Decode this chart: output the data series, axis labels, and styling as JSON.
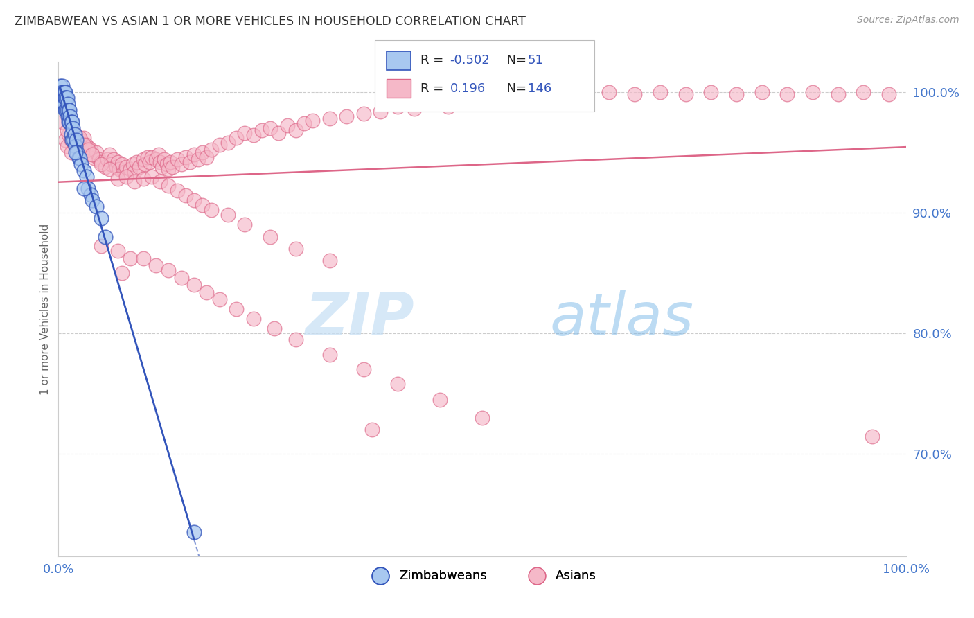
{
  "title": "ZIMBABWEAN VS ASIAN 1 OR MORE VEHICLES IN HOUSEHOLD CORRELATION CHART",
  "source_text": "Source: ZipAtlas.com",
  "ylabel": "1 or more Vehicles in Household",
  "watermark_zip": "ZIP",
  "watermark_atlas": "atlas",
  "legend_blue_r": "-0.502",
  "legend_blue_n": "51",
  "legend_pink_r": "0.196",
  "legend_pink_n": "146",
  "blue_color": "#a8c8f0",
  "pink_color": "#f5b8c8",
  "blue_line_color": "#3355bb",
  "pink_line_color": "#dd6688",
  "title_color": "#333333",
  "source_color": "#999999",
  "grid_color": "#cccccc",
  "background_color": "#ffffff",
  "tick_color": "#4477cc",
  "xlim": [
    0.0,
    1.0
  ],
  "ylim": [
    0.615,
    1.025
  ],
  "yticks": [
    0.7,
    0.8,
    0.9,
    1.0
  ],
  "ytick_labels": [
    "70.0%",
    "80.0%",
    "90.0%",
    "100.0%"
  ],
  "blue_scatter_x": [
    0.002,
    0.003,
    0.004,
    0.004,
    0.005,
    0.005,
    0.005,
    0.006,
    0.006,
    0.006,
    0.007,
    0.007,
    0.007,
    0.008,
    0.008,
    0.008,
    0.009,
    0.009,
    0.01,
    0.01,
    0.011,
    0.011,
    0.012,
    0.012,
    0.013,
    0.013,
    0.014,
    0.015,
    0.015,
    0.016,
    0.016,
    0.017,
    0.018,
    0.019,
    0.02,
    0.021,
    0.022,
    0.024,
    0.025,
    0.027,
    0.03,
    0.033,
    0.035,
    0.038,
    0.04,
    0.045,
    0.05,
    0.055,
    0.03,
    0.02,
    0.16
  ],
  "blue_scatter_y": [
    1.005,
    1.0,
    1.0,
    0.995,
    1.005,
    1.0,
    0.995,
    1.0,
    0.995,
    0.99,
    1.0,
    0.995,
    0.99,
    1.0,
    0.995,
    0.985,
    0.995,
    0.985,
    0.995,
    0.985,
    0.99,
    0.98,
    0.985,
    0.975,
    0.985,
    0.975,
    0.98,
    0.975,
    0.965,
    0.975,
    0.96,
    0.97,
    0.96,
    0.965,
    0.955,
    0.96,
    0.95,
    0.945,
    0.945,
    0.94,
    0.935,
    0.93,
    0.92,
    0.915,
    0.91,
    0.905,
    0.895,
    0.88,
    0.92,
    0.95,
    0.635
  ],
  "pink_scatter_x": [
    0.005,
    0.008,
    0.01,
    0.012,
    0.015,
    0.015,
    0.018,
    0.02,
    0.022,
    0.025,
    0.028,
    0.03,
    0.03,
    0.032,
    0.035,
    0.038,
    0.04,
    0.042,
    0.045,
    0.048,
    0.05,
    0.055,
    0.058,
    0.06,
    0.062,
    0.065,
    0.068,
    0.07,
    0.072,
    0.075,
    0.078,
    0.08,
    0.085,
    0.088,
    0.09,
    0.092,
    0.095,
    0.1,
    0.102,
    0.105,
    0.108,
    0.11,
    0.115,
    0.118,
    0.12,
    0.122,
    0.125,
    0.128,
    0.13,
    0.132,
    0.135,
    0.14,
    0.145,
    0.15,
    0.155,
    0.16,
    0.165,
    0.17,
    0.175,
    0.18,
    0.19,
    0.2,
    0.21,
    0.22,
    0.23,
    0.24,
    0.25,
    0.26,
    0.27,
    0.28,
    0.29,
    0.3,
    0.32,
    0.34,
    0.36,
    0.38,
    0.4,
    0.42,
    0.44,
    0.46,
    0.48,
    0.5,
    0.53,
    0.56,
    0.59,
    0.62,
    0.65,
    0.68,
    0.71,
    0.74,
    0.77,
    0.8,
    0.83,
    0.86,
    0.89,
    0.92,
    0.95,
    0.98,
    0.01,
    0.02,
    0.025,
    0.03,
    0.035,
    0.04,
    0.05,
    0.06,
    0.07,
    0.08,
    0.09,
    0.1,
    0.11,
    0.12,
    0.13,
    0.14,
    0.15,
    0.16,
    0.17,
    0.18,
    0.2,
    0.22,
    0.25,
    0.28,
    0.32,
    0.05,
    0.07,
    0.085,
    0.1,
    0.115,
    0.13,
    0.145,
    0.16,
    0.175,
    0.19,
    0.21,
    0.23,
    0.255,
    0.28,
    0.32,
    0.36,
    0.4,
    0.45,
    0.5,
    0.96,
    0.075,
    0.37
  ],
  "pink_scatter_y": [
    0.975,
    0.96,
    0.955,
    0.965,
    0.96,
    0.95,
    0.958,
    0.965,
    0.955,
    0.96,
    0.958,
    0.95,
    0.962,
    0.956,
    0.954,
    0.952,
    0.948,
    0.945,
    0.95,
    0.944,
    0.942,
    0.938,
    0.944,
    0.948,
    0.94,
    0.944,
    0.938,
    0.942,
    0.936,
    0.94,
    0.934,
    0.938,
    0.936,
    0.94,
    0.934,
    0.942,
    0.938,
    0.944,
    0.94,
    0.946,
    0.942,
    0.946,
    0.944,
    0.948,
    0.942,
    0.938,
    0.944,
    0.94,
    0.936,
    0.942,
    0.938,
    0.944,
    0.94,
    0.946,
    0.942,
    0.948,
    0.944,
    0.95,
    0.946,
    0.952,
    0.956,
    0.958,
    0.962,
    0.966,
    0.964,
    0.968,
    0.97,
    0.966,
    0.972,
    0.968,
    0.974,
    0.976,
    0.978,
    0.98,
    0.982,
    0.984,
    0.988,
    0.986,
    0.99,
    0.988,
    0.992,
    0.994,
    0.996,
    0.998,
    1.0,
    0.998,
    1.0,
    0.998,
    1.0,
    0.998,
    1.0,
    0.998,
    1.0,
    0.998,
    1.0,
    0.998,
    1.0,
    0.998,
    0.968,
    0.958,
    0.962,
    0.956,
    0.952,
    0.948,
    0.94,
    0.936,
    0.928,
    0.93,
    0.926,
    0.928,
    0.93,
    0.926,
    0.922,
    0.918,
    0.914,
    0.91,
    0.906,
    0.902,
    0.898,
    0.89,
    0.88,
    0.87,
    0.86,
    0.872,
    0.868,
    0.862,
    0.862,
    0.856,
    0.852,
    0.846,
    0.84,
    0.834,
    0.828,
    0.82,
    0.812,
    0.804,
    0.795,
    0.782,
    0.77,
    0.758,
    0.745,
    0.73,
    0.714,
    0.85,
    0.72
  ]
}
